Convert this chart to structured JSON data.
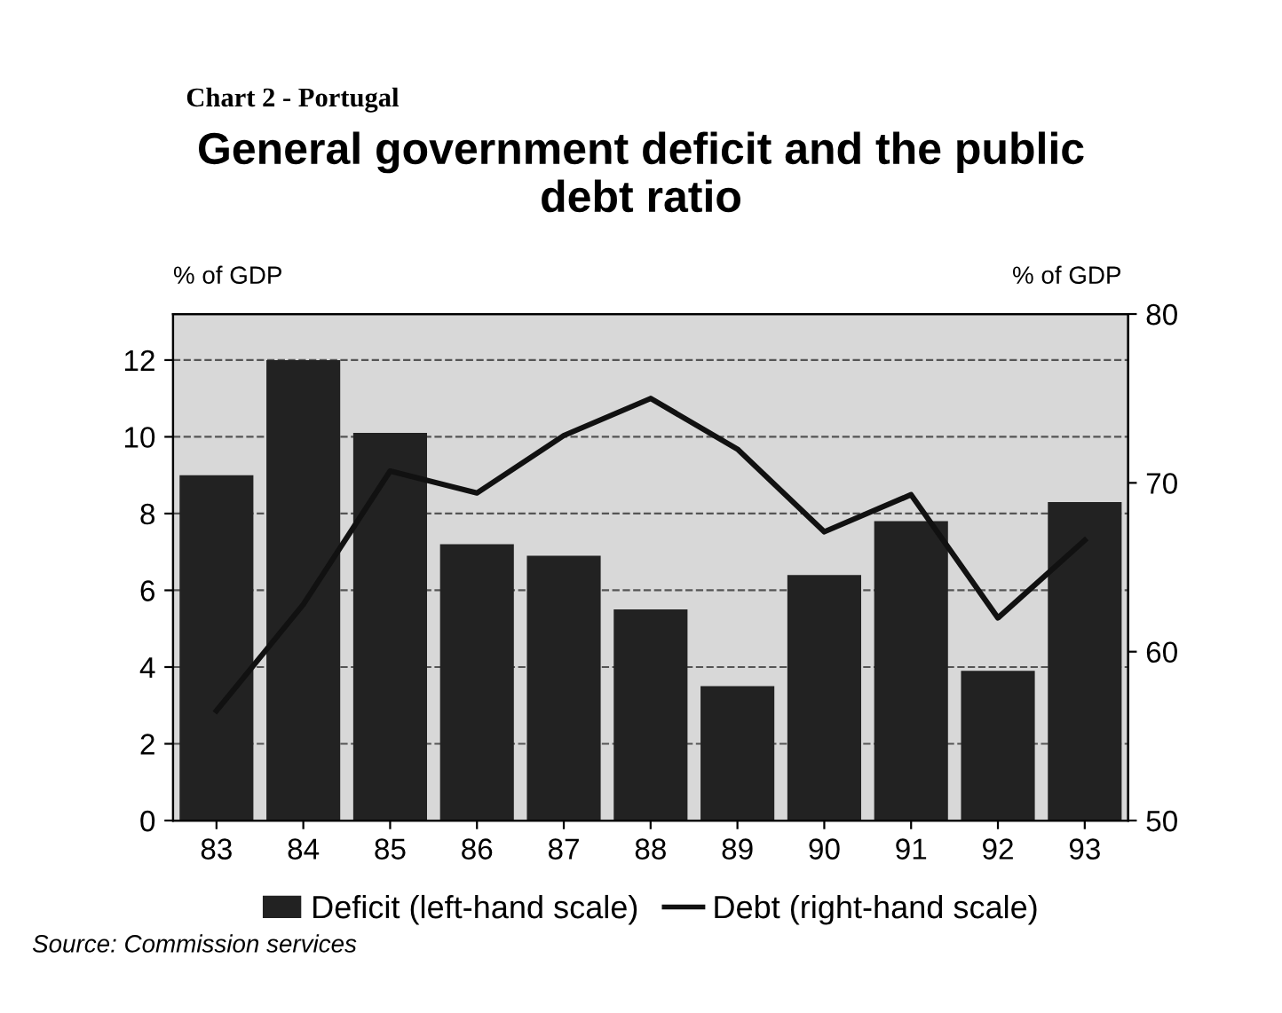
{
  "chart_data": {
    "type": "bar",
    "title": "General government deficit and the public\ndebt ratio",
    "subtitle": "Chart 2 - Portugal",
    "ylabel": "% of GDP",
    "y2label": "% of GDP",
    "categories": [
      "83",
      "84",
      "85",
      "86",
      "87",
      "88",
      "89",
      "90",
      "91",
      "92",
      "93"
    ],
    "series": [
      {
        "name": "Deficit (left-hand scale)",
        "color": "#222222",
        "values": [
          9.0,
          12.0,
          10.1,
          7.2,
          6.9,
          5.5,
          3.5,
          6.4,
          7.8,
          3.9,
          8.3
        ]
      },
      {
        "name": "Debt (right-hand scale)",
        "type": "line",
        "axis": "y2",
        "color": "#111111",
        "values": [
          56.5,
          62.8,
          70.7,
          69.4,
          72.8,
          75.0,
          72.0,
          67.1,
          69.3,
          62.0,
          66.6
        ]
      }
    ],
    "ylim": [
      0,
      13.2
    ],
    "yticks": [
      0,
      2,
      4,
      6,
      8,
      10,
      12
    ],
    "y2lim": [
      50,
      80
    ],
    "y2ticks": [
      50,
      60,
      70,
      80
    ],
    "grid": "y",
    "legend": "bottom",
    "line_style": "solid",
    "marker": "none",
    "annotations": [
      "Source: Commission services"
    ]
  }
}
